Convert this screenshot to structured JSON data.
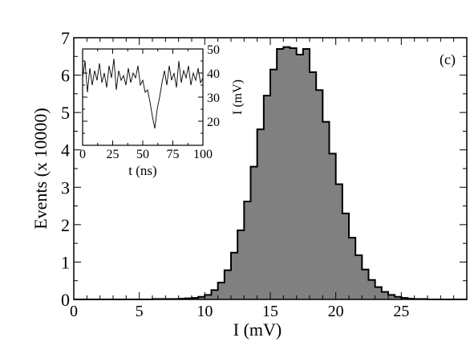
{
  "panel_label": "(c)",
  "chart_data": [
    {
      "type": "histogram",
      "xlabel": "I (mV)",
      "ylabel": "Events (x 10000)",
      "xlim": [
        0,
        30
      ],
      "ylim": [
        0,
        7
      ],
      "xticks": [
        0,
        5,
        10,
        15,
        20,
        25
      ],
      "yticks": [
        0,
        1,
        2,
        3,
        4,
        5,
        6,
        7
      ],
      "bin_width": 0.5,
      "fill_color": "#808080",
      "bins": [
        [
          5.0,
          0.0
        ],
        [
          5.5,
          0.0
        ],
        [
          6.0,
          0.01
        ],
        [
          6.5,
          0.01
        ],
        [
          7.0,
          0.01
        ],
        [
          7.5,
          0.01
        ],
        [
          8.0,
          0.02
        ],
        [
          8.5,
          0.03
        ],
        [
          9.0,
          0.04
        ],
        [
          9.5,
          0.07
        ],
        [
          10.0,
          0.12
        ],
        [
          10.5,
          0.25
        ],
        [
          11.0,
          0.45
        ],
        [
          11.5,
          0.78
        ],
        [
          12.0,
          1.25
        ],
        [
          12.5,
          1.85
        ],
        [
          13.0,
          2.62
        ],
        [
          13.5,
          3.55
        ],
        [
          14.0,
          4.55
        ],
        [
          14.5,
          5.45
        ],
        [
          15.0,
          6.15
        ],
        [
          15.5,
          6.7
        ],
        [
          16.0,
          6.75
        ],
        [
          16.5,
          6.72
        ],
        [
          17.0,
          6.55
        ],
        [
          17.5,
          6.7
        ],
        [
          18.0,
          6.08
        ],
        [
          18.5,
          5.6
        ],
        [
          19.0,
          4.75
        ],
        [
          19.5,
          3.9
        ],
        [
          20.0,
          3.08
        ],
        [
          20.5,
          2.3
        ],
        [
          21.0,
          1.65
        ],
        [
          21.5,
          1.18
        ],
        [
          22.0,
          0.8
        ],
        [
          22.5,
          0.52
        ],
        [
          23.0,
          0.33
        ],
        [
          23.5,
          0.2
        ],
        [
          24.0,
          0.12
        ],
        [
          24.5,
          0.07
        ],
        [
          25.0,
          0.04
        ],
        [
          25.5,
          0.02
        ],
        [
          26.0,
          0.01
        ],
        [
          26.5,
          0.01
        ],
        [
          27.0,
          0.0
        ]
      ]
    },
    {
      "type": "line",
      "xlabel": "t (ns)",
      "ylabel": "I (mV)",
      "xlim": [
        0,
        100
      ],
      "ylim": [
        10,
        50
      ],
      "xticks": [
        0,
        25,
        50,
        75,
        100
      ],
      "yticks": [
        20,
        30,
        40,
        50
      ],
      "x": [
        0,
        2,
        4,
        6,
        8,
        10,
        12,
        14,
        16,
        18,
        20,
        22,
        24,
        26,
        28,
        30,
        32,
        34,
        36,
        38,
        40,
        42,
        44,
        46,
        48,
        50,
        52,
        54,
        56,
        58,
        60,
        62,
        64,
        66,
        68,
        70,
        72,
        74,
        76,
        78,
        80,
        82,
        84,
        86,
        88,
        90,
        92,
        94,
        96,
        98,
        100
      ],
      "y": [
        38,
        45,
        32,
        42,
        35,
        41,
        37,
        44,
        36,
        40,
        34,
        43,
        38,
        46,
        33,
        41,
        37,
        39,
        35,
        42,
        36,
        40,
        38,
        43,
        35,
        37,
        32,
        33,
        28,
        22,
        17,
        25,
        30,
        36,
        41,
        35,
        43,
        37,
        40,
        34,
        45,
        36,
        41,
        38,
        43,
        35,
        40,
        37,
        42,
        36,
        38
      ]
    }
  ]
}
